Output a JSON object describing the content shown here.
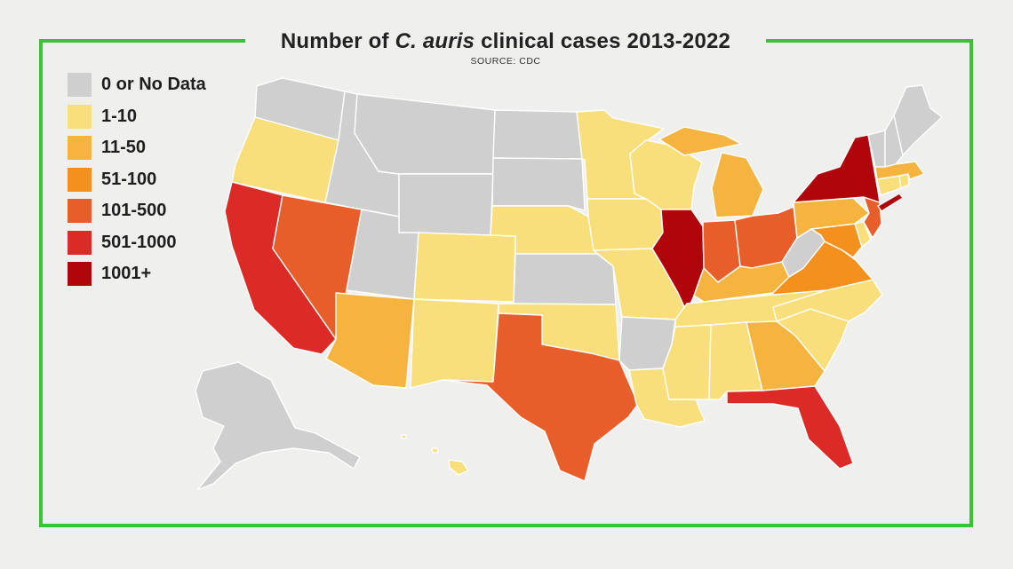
{
  "title": {
    "prefix": "Number of ",
    "italic": "C. auris",
    "suffix": " clinical cases 2013-2022"
  },
  "source": "SOURCE: CDC",
  "colors": {
    "frame": "#3cc236",
    "background": "#efefee"
  },
  "legend": [
    {
      "label": "0 or No Data",
      "color": "#cfcfcf"
    },
    {
      "label": "1-10",
      "color": "#f9de7c"
    },
    {
      "label": "11-50",
      "color": "#f5b440"
    },
    {
      "label": "51-100",
      "color": "#f4901e"
    },
    {
      "label": "101-500",
      "color": "#e85e2a"
    },
    {
      "label": "501-1000",
      "color": "#dc2b27"
    },
    {
      "label": "1001+",
      "color": "#b0060b"
    }
  ],
  "states": {
    "WA": 0,
    "OR": 1,
    "CA": 5,
    "NV": 4,
    "ID": 0,
    "MT": 0,
    "WY": 0,
    "UT": 0,
    "AZ": 2,
    "CO": 1,
    "NM": 1,
    "ND": 0,
    "SD": 0,
    "NE": 1,
    "KS": 0,
    "OK": 1,
    "TX": 4,
    "MN": 1,
    "IA": 1,
    "MO": 1,
    "AR": 0,
    "LA": 1,
    "WI": 1,
    "IL": 6,
    "MI": 2,
    "IN": 4,
    "OH": 4,
    "KY": 2,
    "TN": 1,
    "MS": 1,
    "AL": 1,
    "GA": 2,
    "FL": 5,
    "SC": 1,
    "NC": 1,
    "VA": 3,
    "WV": 0,
    "MD": 3,
    "DE": 1,
    "PA": 2,
    "NJ": 4,
    "NY": 6,
    "CT": 1,
    "RI": 1,
    "MA": 2,
    "VT": 0,
    "NH": 0,
    "ME": 0,
    "AK": 0,
    "HI": 1
  }
}
